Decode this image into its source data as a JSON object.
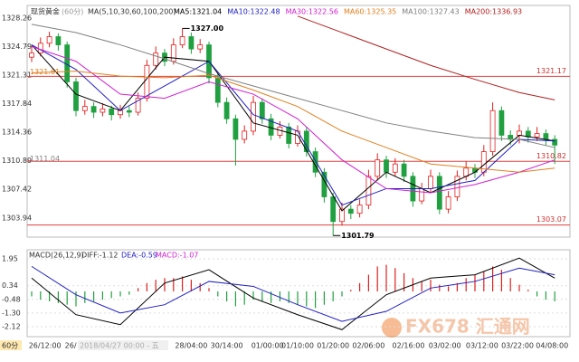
{
  "chart_data": {
    "type": "candlestick",
    "header": {
      "title": "现货黄金",
      "period": "(60分)",
      "ma_label": "MA(5,10,30,60,100,200)",
      "ma_values": [
        {
          "text": "MA5:1321.04",
          "color": "#000000"
        },
        {
          "text": "MA10:1322.48",
          "color": "#2020c0"
        },
        {
          "text": "MA30:1322.56",
          "color": "#d020d0"
        },
        {
          "text": "MA60:1325.35",
          "color": "#e08020"
        },
        {
          "text": "MA100:1327.43",
          "color": "#808080"
        },
        {
          "text": "MA200:1336.93",
          "color": "#b02020"
        }
      ]
    },
    "ylim": [
      1301.6,
      1329.8
    ],
    "yticks": [
      1328.26,
      1324.79,
      1321.31,
      1317.84,
      1314.36,
      1310.89,
      1307.42,
      1303.94
    ],
    "up_color": "#e02020",
    "down_color": "#20a040",
    "ohlc": [
      [
        1323.5,
        1324.8,
        1322.9,
        1324.0
      ],
      [
        1324.0,
        1325.9,
        1323.6,
        1325.2
      ],
      [
        1325.2,
        1326.6,
        1324.7,
        1326.0
      ],
      [
        1326.0,
        1326.4,
        1324.3,
        1325.0
      ],
      [
        1325.0,
        1325.4,
        1319.8,
        1320.5
      ],
      [
        1320.5,
        1321.0,
        1316.3,
        1317.0
      ],
      [
        1317.0,
        1318.3,
        1316.5,
        1317.5
      ],
      [
        1317.5,
        1318.0,
        1316.1,
        1316.8
      ],
      [
        1316.8,
        1317.9,
        1316.3,
        1317.2
      ],
      [
        1317.2,
        1317.6,
        1315.8,
        1316.5
      ],
      [
        1316.5,
        1317.7,
        1316.0,
        1317.0
      ],
      [
        1317.0,
        1317.5,
        1316.2,
        1316.8
      ],
      [
        1316.8,
        1319.2,
        1316.4,
        1318.5
      ],
      [
        1318.5,
        1323.2,
        1318.1,
        1322.5
      ],
      [
        1322.5,
        1324.8,
        1322.0,
        1324.0
      ],
      [
        1324.0,
        1324.5,
        1322.4,
        1323.0
      ],
      [
        1323.0,
        1325.8,
        1322.6,
        1325.0
      ],
      [
        1325.0,
        1327.0,
        1324.6,
        1326.0
      ],
      [
        1326.0,
        1326.5,
        1323.9,
        1324.5
      ],
      [
        1324.5,
        1325.7,
        1324.0,
        1325.0
      ],
      [
        1325.0,
        1325.4,
        1320.3,
        1321.0
      ],
      [
        1321.0,
        1321.5,
        1317.4,
        1318.0
      ],
      [
        1318.0,
        1318.6,
        1315.4,
        1316.0
      ],
      [
        1316.0,
        1316.5,
        1310.3,
        1313.5
      ],
      [
        1313.5,
        1315.2,
        1313.0,
        1314.5
      ],
      [
        1314.5,
        1318.8,
        1314.0,
        1318.0
      ],
      [
        1318.0,
        1318.5,
        1315.4,
        1316.0
      ],
      [
        1316.0,
        1316.6,
        1313.4,
        1314.0
      ],
      [
        1314.0,
        1315.7,
        1313.6,
        1315.0
      ],
      [
        1315.0,
        1315.5,
        1312.4,
        1313.0
      ],
      [
        1313.0,
        1315.2,
        1312.6,
        1314.5
      ],
      [
        1314.5,
        1315.0,
        1311.4,
        1312.0
      ],
      [
        1312.0,
        1312.5,
        1308.9,
        1309.5
      ],
      [
        1309.5,
        1310.0,
        1305.8,
        1306.5
      ],
      [
        1306.5,
        1307.0,
        1301.79,
        1303.5
      ],
      [
        1303.5,
        1305.8,
        1303.0,
        1305.0
      ],
      [
        1305.0,
        1305.5,
        1303.8,
        1304.5
      ],
      [
        1304.5,
        1306.2,
        1304.0,
        1305.5
      ],
      [
        1305.5,
        1309.8,
        1305.0,
        1309.0
      ],
      [
        1309.0,
        1311.8,
        1308.5,
        1311.0
      ],
      [
        1311.0,
        1311.5,
        1308.8,
        1309.5
      ],
      [
        1309.5,
        1311.2,
        1309.0,
        1310.5
      ],
      [
        1310.5,
        1311.0,
        1308.3,
        1309.0
      ],
      [
        1309.0,
        1309.5,
        1305.3,
        1306.0
      ],
      [
        1306.0,
        1308.2,
        1305.6,
        1307.5
      ],
      [
        1307.5,
        1309.8,
        1307.0,
        1309.0
      ],
      [
        1309.0,
        1309.5,
        1304.4,
        1305.0
      ],
      [
        1305.0,
        1307.2,
        1304.5,
        1306.5
      ],
      [
        1306.5,
        1309.7,
        1306.0,
        1309.0
      ],
      [
        1309.0,
        1310.8,
        1308.5,
        1310.0
      ],
      [
        1310.0,
        1310.5,
        1308.8,
        1309.5
      ],
      [
        1309.5,
        1312.8,
        1309.0,
        1312.0
      ],
      [
        1312.0,
        1318.0,
        1311.5,
        1317.0
      ],
      [
        1317.0,
        1317.5,
        1313.3,
        1314.0
      ],
      [
        1314.0,
        1314.6,
        1312.8,
        1313.5
      ],
      [
        1314.0,
        1315.3,
        1313.0,
        1314.5
      ],
      [
        1314.5,
        1315.0,
        1313.1,
        1313.8
      ],
      [
        1313.8,
        1315.0,
        1313.3,
        1314.2
      ],
      [
        1314.2,
        1314.7,
        1312.8,
        1313.5
      ],
      [
        1313.5,
        1314.0,
        1310.5,
        1312.8
      ]
    ],
    "ma_x": [
      0,
      5,
      10,
      15,
      20,
      25,
      30,
      35,
      40,
      45,
      50,
      55,
      59
    ],
    "series": [
      {
        "name": "MA5",
        "color": "#000000",
        "values": [
          1325,
          1319,
          1317,
          1323.5,
          1323,
          1315.5,
          1314,
          1304.8,
          1309.5,
          1307,
          1309.5,
          1314,
          1313.3
        ]
      },
      {
        "name": "MA10",
        "color": "#2020c0",
        "values": [
          1325,
          1322,
          1317,
          1320,
          1323,
          1316.5,
          1314.5,
          1305.5,
          1307.5,
          1307.5,
          1308.5,
          1313.5,
          1313.3
        ]
      },
      {
        "name": "MA30",
        "color": "#d020d0",
        "values": [
          1324.8,
          1323,
          1319,
          1318.5,
          1320.5,
          1319,
          1316,
          1311,
          1307.5,
          1307,
          1308,
          1309.5,
          1311
        ]
      },
      {
        "name": "MA60",
        "color": "#e08020",
        "values": [
          1321.6,
          1321.8,
          1321.2,
          1321,
          1321.3,
          1319.5,
          1317.5,
          1314.5,
          1312.5,
          1310.5,
          1310,
          1309.5,
          1310
        ]
      },
      {
        "name": "MA100",
        "color": "#808080",
        "values": [
          1327.5,
          1326.5,
          1325,
          1323.3,
          1321.5,
          1320,
          1318.5,
          1317,
          1315.5,
          1314.5,
          1313.7,
          1313.5,
          1312.5
        ]
      },
      {
        "name": "MA200",
        "color": "#b02020",
        "values": [
          null,
          null,
          null,
          null,
          null,
          null,
          1328.5,
          1326.5,
          1324.5,
          1322.5,
          1320.8,
          1319.2,
          1318.3
        ]
      }
    ],
    "levels": [
      1321.17,
      1310.82,
      1303.07
    ],
    "left_labels": [
      {
        "value": 1321.61,
        "color": "#e08020"
      },
      {
        "value": 1311.04,
        "color": "#808080"
      }
    ],
    "high_label": {
      "index": 17,
      "price": {
        "value": 1327,
        "label": "1327.00"
      }
    },
    "low_label": {
      "index": 34,
      "price": 1301.79
    },
    "macd": {
      "header": "MACD(26,12,9)",
      "diff_text": "DIFF:-1.12",
      "dea_text": "DEA:-0.59",
      "macd_text": "MACD:-1.07",
      "ylim": [
        -2.72,
        2.5
      ],
      "yticks": [
        1.95,
        0.34,
        -0.48,
        {
          "value": -1.3,
          "label": "-1.30"
        },
        -2.12
      ],
      "histogram": [
        -0.3,
        -0.5,
        -0.6,
        -0.7,
        -0.8,
        -0.9,
        -0.7,
        -0.6,
        -0.5,
        -0.4,
        -0.3,
        -0.2,
        0.2,
        0.5,
        0.7,
        0.8,
        0.8,
        0.9,
        0.7,
        0.5,
        0.2,
        -0.3,
        -0.6,
        -0.9,
        -0.8,
        -0.5,
        -0.6,
        -0.7,
        -0.6,
        -0.7,
        -0.8,
        -0.9,
        -1.0,
        -0.8,
        -0.6,
        -0.3,
        0.1,
        0.5,
        1.0,
        1.5,
        1.6,
        1.4,
        1.1,
        0.8,
        0.6,
        0.7,
        0.4,
        0.3,
        0.5,
        0.8,
        1.0,
        1.2,
        1.5,
        1.3,
        0.8,
        0.4,
        0.1,
        -0.3,
        -0.5,
        -0.6
      ],
      "series": [
        {
          "name": "DIFF",
          "color": "#000000",
          "values": [
            0.8,
            -1.4,
            -2.0,
            0.5,
            1.3,
            -0.4,
            -1.4,
            -2.3,
            -0.2,
            0.8,
            1.0,
            2.0,
            0.8
          ]
        },
        {
          "name": "DEA",
          "color": "#2020c0",
          "values": [
            1.5,
            -0.2,
            -1.3,
            -0.8,
            0.6,
            0.3,
            -0.8,
            -1.8,
            -1.2,
            0.2,
            0.6,
            1.4,
            1.0
          ]
        }
      ]
    },
    "x_labels": [
      {
        "value": 1.5,
        "label": "26/12:00"
      },
      {
        "value": 4.4,
        "label": "26/"
      },
      {
        "value": 18,
        "label": "28/04:00"
      },
      {
        "value": 22,
        "label": "30/14:00"
      },
      {
        "value": 26.6,
        "label": "01/00:00"
      },
      {
        "value": 30,
        "label": "01/10:00"
      },
      {
        "value": 34,
        "label": "01/20:00"
      },
      {
        "value": 38,
        "label": "02/06:00"
      },
      {
        "value": 42.5,
        "label": "02/16:00"
      },
      {
        "value": 46.6,
        "label": "03/02:00"
      },
      {
        "value": 50.8,
        "label": "03/12:00"
      },
      {
        "value": 54.8,
        "label": "03/22:00"
      },
      {
        "value": 58.7,
        "label": "04/08:00"
      }
    ],
    "cursor_label": "2018/04/27 00:00 - 五",
    "period_tag": "60分",
    "watermark": "FX678 汇通网"
  }
}
